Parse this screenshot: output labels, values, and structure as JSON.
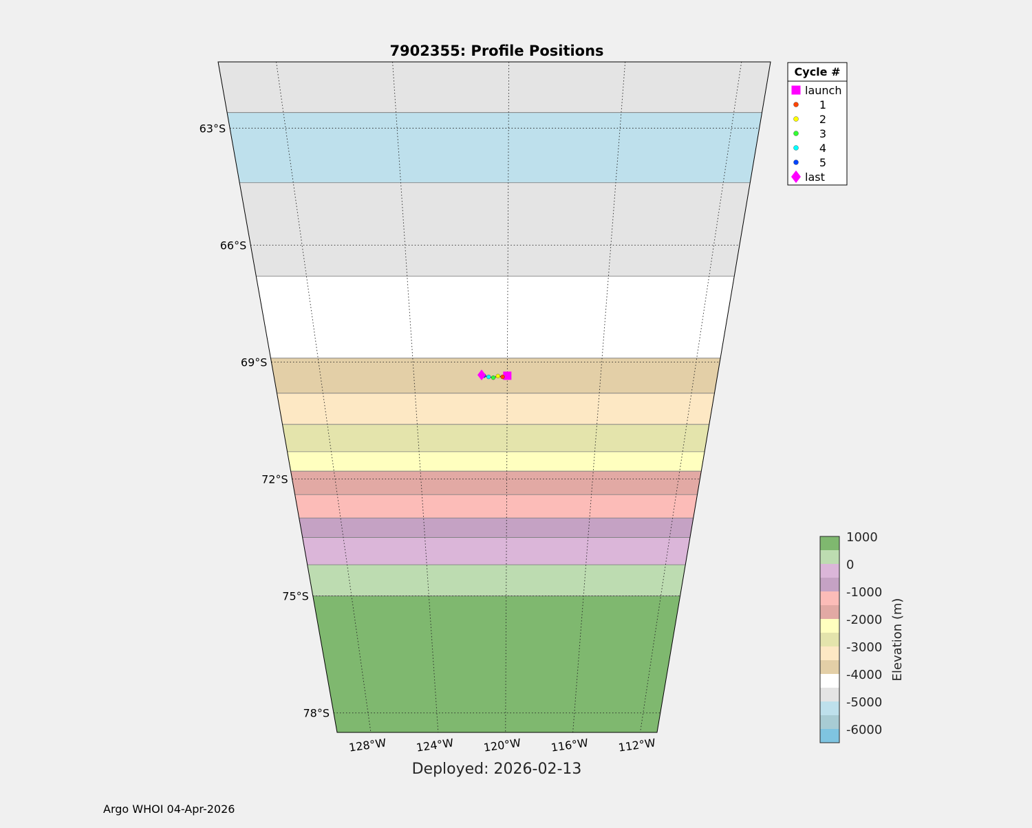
{
  "title": "7902355: Profile Positions",
  "xlabel": "Deployed: 2026-02-13",
  "footer": "Argo WHOI 04-Apr-2026",
  "map": {
    "projection": "trapezoid",
    "lon_range": [
      -130,
      -111
    ],
    "lat_range": [
      -78.5,
      -61.3
    ],
    "lat_ticks": [
      {
        "value": -63,
        "label": "63°S"
      },
      {
        "value": -66,
        "label": "66°S"
      },
      {
        "value": -69,
        "label": "69°S"
      },
      {
        "value": -72,
        "label": "72°S"
      },
      {
        "value": -75,
        "label": "75°S"
      },
      {
        "value": -78,
        "label": "78°S"
      }
    ],
    "lon_ticks": [
      {
        "value": -128,
        "label": "128°W"
      },
      {
        "value": -124,
        "label": "124°W"
      },
      {
        "value": -120,
        "label": "120°W"
      },
      {
        "value": -116,
        "label": "116°W"
      },
      {
        "value": -112,
        "label": "112°W"
      }
    ],
    "elevation_bands": [
      {
        "lat_top": -61.3,
        "lat_bottom": -62.6,
        "range": "-5000 to -4500",
        "color": "#e4e4e4"
      },
      {
        "lat_top": -62.6,
        "lat_bottom": -64.4,
        "range": "-5500 to -5000",
        "color": "#bee0ec"
      },
      {
        "lat_top": -64.4,
        "lat_bottom": -66.8,
        "range": "-5000 to -4500",
        "color": "#e4e4e4"
      },
      {
        "lat_top": -66.8,
        "lat_bottom": -68.9,
        "range": "-4500 to -4000",
        "color": "#ffffff"
      },
      {
        "lat_top": -68.9,
        "lat_bottom": -69.8,
        "range": "-4000 to -3500",
        "color": "#e3cfa7"
      },
      {
        "lat_top": -69.8,
        "lat_bottom": -70.6,
        "range": "-3500 to -3000",
        "color": "#fde8c4"
      },
      {
        "lat_top": -70.6,
        "lat_bottom": -71.3,
        "range": "-3000 to -2500",
        "color": "#e4e4ac"
      },
      {
        "lat_top": -71.3,
        "lat_bottom": -71.8,
        "range": "-2500 to -2000",
        "color": "#ffffbf"
      },
      {
        "lat_top": -71.8,
        "lat_bottom": -72.4,
        "range": "-2000 to -1500",
        "color": "#e2a9a4"
      },
      {
        "lat_top": -72.4,
        "lat_bottom": -73.0,
        "range": "-1500 to -1000",
        "color": "#fcbcb8"
      },
      {
        "lat_top": -73.0,
        "lat_bottom": -73.5,
        "range": "-1000 to -500",
        "color": "#c5a2c4"
      },
      {
        "lat_top": -73.5,
        "lat_bottom": -74.2,
        "range": "-500 to 0",
        "color": "#dbb6d9"
      },
      {
        "lat_top": -74.2,
        "lat_bottom": -75.0,
        "range": "0 to 500",
        "color": "#bddcb1"
      },
      {
        "lat_top": -75.0,
        "lat_bottom": -78.5,
        "range": "500 to 1000",
        "color": "#7fb86f"
      }
    ]
  },
  "legend": {
    "header": "Cycle #",
    "items": [
      {
        "label": "launch",
        "marker": "square",
        "color": "#ff00ff",
        "lon": -120.0,
        "lat": -69.35
      },
      {
        "label": "1",
        "marker": "dot",
        "color": "#ff4400",
        "lon": -120.2,
        "lat": -69.38
      },
      {
        "label": "2",
        "marker": "dot",
        "color": "#ffff00",
        "lon": -120.4,
        "lat": -69.36
      },
      {
        "label": "3",
        "marker": "dot",
        "color": "#33ff33",
        "lon": -120.6,
        "lat": -69.4
      },
      {
        "label": "4",
        "marker": "dot",
        "color": "#00ffff",
        "lon": -120.8,
        "lat": -69.38
      },
      {
        "label": "5",
        "marker": "dot",
        "color": "#0044ff",
        "lon": -121.0,
        "lat": -69.35
      },
      {
        "label": "last",
        "marker": "diamond",
        "color": "#ff00ff",
        "lon": -121.1,
        "lat": -69.33
      }
    ]
  },
  "colorbar": {
    "label": "Elevation (m)",
    "tick_labels": [
      "1000",
      "0",
      "-1000",
      "-2000",
      "-3000",
      "-4000",
      "-5000",
      "-6000"
    ],
    "range": [
      -6500,
      1000
    ],
    "colors": [
      "#7fb86f",
      "#bddcb1",
      "#dbb6d9",
      "#c5a2c4",
      "#fcbcb8",
      "#e2a9a4",
      "#ffffbf",
      "#e4e4ac",
      "#fde8c4",
      "#e3cfa7",
      "#ffffff",
      "#e4e4e4",
      "#bee0ec",
      "#a8ccd4",
      "#7fc4e0"
    ]
  }
}
